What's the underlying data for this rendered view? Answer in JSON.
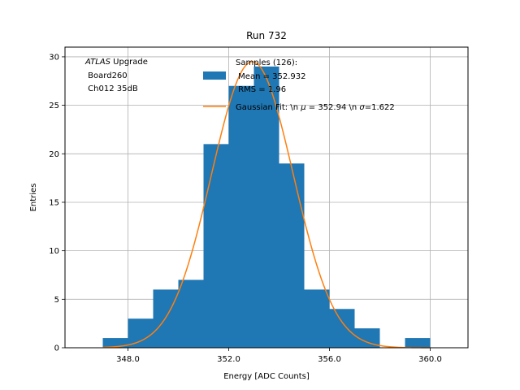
{
  "chart_data": {
    "type": "bar",
    "title": "Run 732",
    "xlabel": "Energy [ADC Counts]",
    "ylabel": "Entries",
    "xlim": [
      345.5,
      361.5
    ],
    "ylim": [
      0,
      31
    ],
    "xticks": [
      348,
      352,
      356,
      360
    ],
    "xtick_labels": [
      "348.0",
      "352.0",
      "356.0",
      "360.0"
    ],
    "yticks": [
      0,
      5,
      10,
      15,
      20,
      25,
      30
    ],
    "ytick_labels": [
      "0",
      "5",
      "10",
      "15",
      "20",
      "25",
      "30"
    ],
    "grid": true,
    "annotation": {
      "italic": "ATLAS",
      "rest": " Upgrade",
      "line2": " Board260",
      "line3": " Ch012 35dB"
    },
    "legend": {
      "placement": "top-right",
      "hist_label": [
        "Samples (126):",
        " Mean = 352.932",
        " RMS = 1.96"
      ],
      "fit_label_parts": [
        "Gaussian Fit: \\n ",
        "μ",
        " = 352.94 \\n ",
        "σ",
        "=1.622"
      ]
    },
    "colors": {
      "hist": "#1f77b4",
      "fit": "#ff7f0e",
      "grid": "#b0b0b0"
    },
    "series": [
      {
        "type": "histogram",
        "bin_width": 1,
        "bins": [
          {
            "x0": 347,
            "count": 1
          },
          {
            "x0": 348,
            "count": 3
          },
          {
            "x0": 349,
            "count": 6
          },
          {
            "x0": 350,
            "count": 7
          },
          {
            "x0": 351,
            "count": 21
          },
          {
            "x0": 352,
            "count": 27
          },
          {
            "x0": 353,
            "count": 29
          },
          {
            "x0": 354,
            "count": 19
          },
          {
            "x0": 355,
            "count": 6
          },
          {
            "x0": 356,
            "count": 4
          },
          {
            "x0": 357,
            "count": 2
          },
          {
            "x0": 358,
            "count": 0
          },
          {
            "x0": 359,
            "count": 1
          }
        ]
      },
      {
        "type": "gaussian_fit",
        "mu": 352.94,
        "sigma": 1.622,
        "amplitude": 29.5,
        "x_range": [
          347,
          360
        ]
      }
    ]
  }
}
